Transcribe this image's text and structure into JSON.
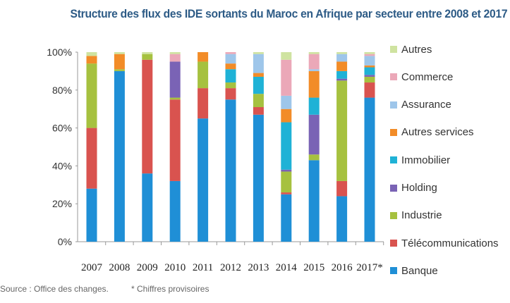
{
  "chart_data": {
    "type": "bar",
    "stacked": true,
    "title": "Structure des flux des IDE sortants du Maroc en Afrique par secteur entre 2008 et 2017",
    "categories": [
      "2007",
      "2008",
      "2009",
      "2010",
      "2011",
      "2012",
      "2013",
      "2014",
      "2015",
      "2016",
      "2017*"
    ],
    "ylim": [
      0,
      100
    ],
    "yticks": [
      "0%",
      "20%",
      "40%",
      "60%",
      "80%",
      "100%"
    ],
    "legend_position": "right",
    "grid": false,
    "series": [
      {
        "name": "Banque",
        "color": "#1f8fd6",
        "values": [
          28,
          90,
          36,
          32,
          65,
          75,
          67,
          25,
          43,
          24,
          76
        ]
      },
      {
        "name": "Télécommunications",
        "color": "#d9534f",
        "values": [
          32,
          0,
          60,
          43,
          16,
          6,
          4,
          1,
          0,
          8,
          8
        ]
      },
      {
        "name": "Industrie",
        "color": "#a6c13f",
        "values": [
          34,
          1,
          3,
          1,
          14,
          3,
          7,
          11,
          3,
          53,
          3
        ]
      },
      {
        "name": "Holding",
        "color": "#7a63b5",
        "values": [
          0,
          0,
          0,
          19,
          0,
          0,
          0,
          1,
          21,
          1,
          1
        ]
      },
      {
        "name": "Immobilier",
        "color": "#1fb2d6",
        "values": [
          0,
          0,
          0,
          0,
          0,
          7,
          9,
          25,
          9,
          4,
          4
        ]
      },
      {
        "name": "Autres services",
        "color": "#f28c28",
        "values": [
          4,
          8,
          0,
          0,
          5,
          3,
          2,
          7,
          14,
          5,
          1
        ]
      },
      {
        "name": "Assurance",
        "color": "#9ec6ea",
        "values": [
          0,
          0,
          0,
          0,
          0,
          5,
          10,
          7,
          1,
          4,
          5
        ]
      },
      {
        "name": "Commerce",
        "color": "#eba8b8",
        "values": [
          0,
          0,
          0,
          4,
          0,
          1,
          0,
          19,
          8,
          0,
          1
        ]
      },
      {
        "name": "Autres",
        "color": "#cfe3a0",
        "values": [
          2,
          1,
          1,
          1,
          0,
          0,
          1,
          4,
          1,
          1,
          1
        ]
      }
    ]
  },
  "source": "Source : Office des changes.",
  "note": "* Chiffres provisoires"
}
